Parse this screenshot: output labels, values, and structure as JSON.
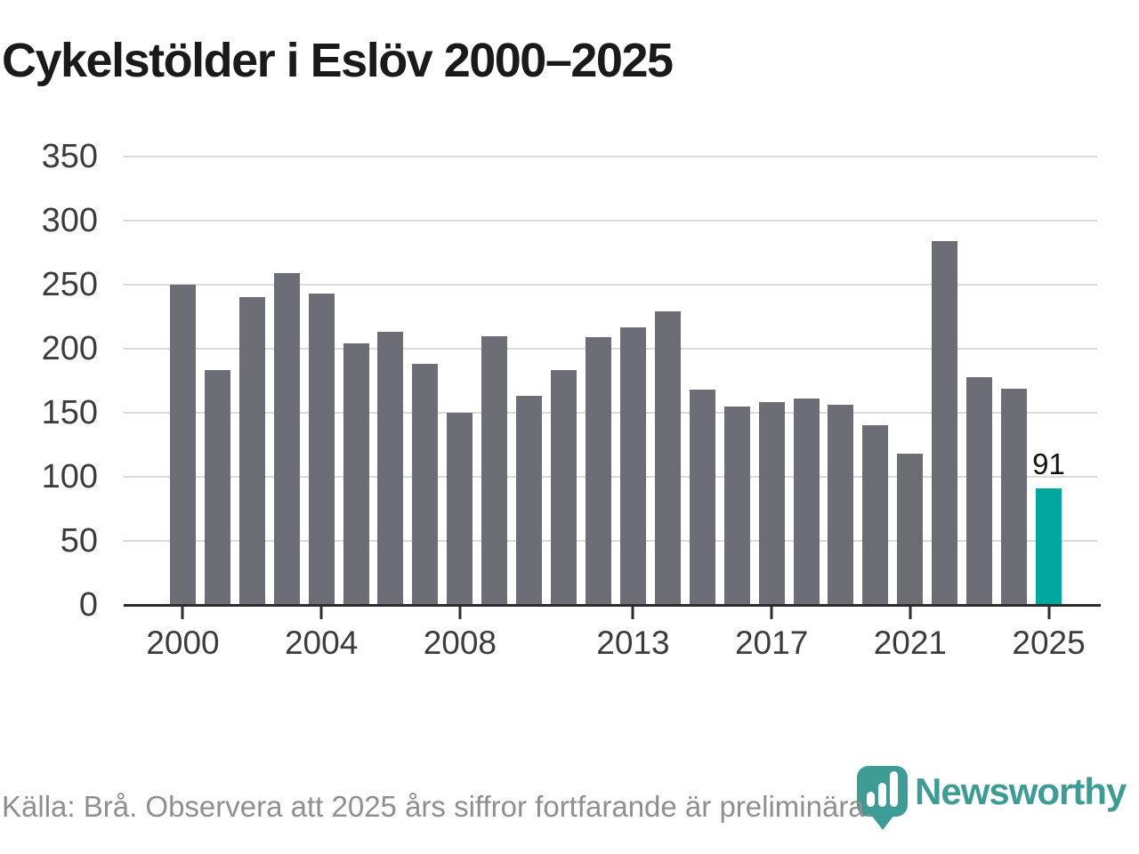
{
  "title": "Cykelstölder i Eslöv 2000–2025",
  "footer": {
    "source_note": "Källa: Brå. Observera att 2025 års siffror fortfarande är preliminära."
  },
  "branding": {
    "logo_text": "Newsworthy",
    "logo_color": "#3d9d94",
    "logo_icon": "map-pin-bar-chart-icon"
  },
  "chart_data": {
    "type": "bar",
    "title": "Cykelstölder i Eslöv 2000–2025",
    "categories": [
      2000,
      2001,
      2002,
      2003,
      2004,
      2005,
      2006,
      2007,
      2008,
      2009,
      2010,
      2011,
      2012,
      2013,
      2014,
      2015,
      2016,
      2017,
      2018,
      2019,
      2020,
      2021,
      2022,
      2023,
      2024,
      2025
    ],
    "values": [
      250,
      183,
      240,
      259,
      243,
      204,
      213,
      188,
      150,
      210,
      163,
      183,
      209,
      217,
      229,
      168,
      155,
      158,
      161,
      156,
      140,
      118,
      284,
      178,
      169,
      91
    ],
    "bar_color": "#6d6d75",
    "highlight": {
      "year": 2025,
      "value": 91,
      "label": "91",
      "color": "#00a79c"
    },
    "ylim": [
      0,
      350
    ],
    "y_ticks": [
      0,
      50,
      100,
      150,
      200,
      250,
      300,
      350
    ],
    "x_ticks": [
      2000,
      2004,
      2008,
      2013,
      2017,
      2021,
      2025
    ],
    "x_tick_labels": [
      "2000",
      "2004",
      "2008",
      "2013",
      "2017",
      "2021",
      "2025"
    ],
    "grid": "horizontal",
    "legend": "none",
    "xlabel": "",
    "ylabel": ""
  }
}
